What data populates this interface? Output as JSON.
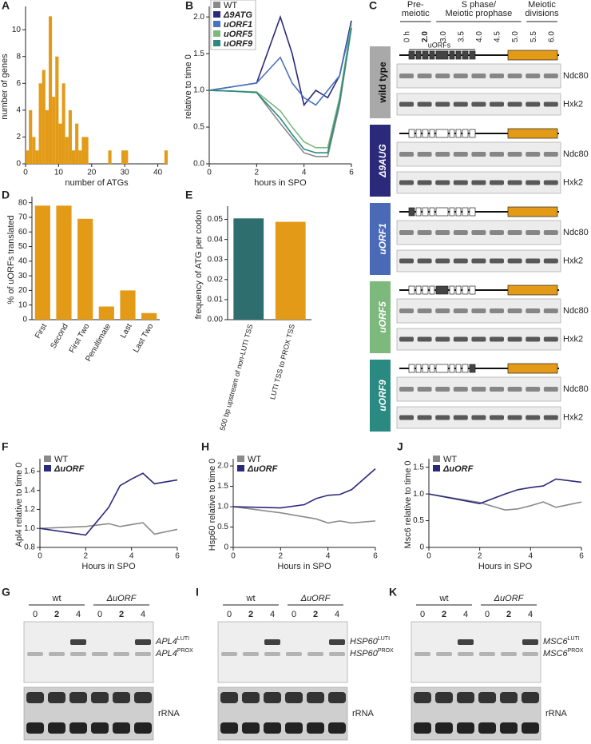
{
  "chart_data": [
    {
      "panel": "A",
      "type": "histogram",
      "xlabel": "number of ATGs",
      "ylabel": "number of genes",
      "color": "#e39b17",
      "bins": [
        0,
        1,
        2,
        3,
        4,
        5,
        6,
        7,
        8,
        9,
        10,
        11,
        12,
        13,
        14,
        15,
        16,
        17,
        18,
        19,
        20,
        21,
        22,
        23,
        24,
        25,
        26,
        27,
        28,
        29,
        30,
        31,
        32,
        33,
        34,
        35,
        36,
        37,
        38,
        39,
        40,
        41,
        42,
        43
      ],
      "values": [
        1,
        4,
        2,
        1,
        6,
        7,
        4,
        11,
        5,
        8,
        3,
        6,
        2,
        4,
        1,
        3,
        1,
        2,
        2,
        0,
        0,
        0,
        0,
        0,
        0,
        1,
        0,
        0,
        0,
        1,
        1,
        0,
        0,
        0,
        0,
        0,
        0,
        0,
        0,
        0,
        0,
        0,
        1
      ],
      "xlim": [
        0,
        43
      ],
      "xticks": [
        0,
        10,
        20,
        30,
        40
      ],
      "ylim": [
        0,
        11.5
      ],
      "yticks": [
        0,
        2,
        4,
        6,
        8,
        10
      ]
    },
    {
      "panel": "B",
      "type": "line",
      "xlabel": "hours in SPO",
      "ylabel": "relative to time 0",
      "x": [
        0,
        1,
        2,
        3,
        3.5,
        4,
        4.5,
        5,
        5.5,
        6
      ],
      "series": [
        {
          "name": "WT",
          "color": "#8a8a8a",
          "values": [
            1,
            0.99,
            0.97,
            0.55,
            0.35,
            0.15,
            0.1,
            0.1,
            0.8,
            1.85
          ]
        },
        {
          "name": "Δ9ATG",
          "color": "#2b2a7a",
          "values": [
            1,
            1.05,
            1.1,
            2.0,
            1.5,
            0.8,
            1.0,
            0.9,
            1.2,
            1.95
          ]
        },
        {
          "name": "uORF1",
          "color": "#4a72c0",
          "values": [
            1,
            1.05,
            1.1,
            1.45,
            1.1,
            0.9,
            0.8,
            1.0,
            1.2,
            1.9
          ]
        },
        {
          "name": "uORF5",
          "color": "#7db87d",
          "values": [
            1,
            0.99,
            0.98,
            0.72,
            0.5,
            0.3,
            0.22,
            0.22,
            0.9,
            1.9
          ]
        },
        {
          "name": "uORF9",
          "color": "#2a8a82",
          "values": [
            1,
            0.99,
            0.97,
            0.62,
            0.4,
            0.2,
            0.15,
            0.15,
            0.85,
            1.85
          ]
        }
      ],
      "xlim": [
        0,
        6
      ],
      "xticks": [
        0,
        2,
        4,
        6
      ],
      "ylim": [
        0,
        2.1
      ],
      "yticks": [
        {
          "value": 0,
          "label": "0.0"
        },
        0.5,
        {
          "value": 1,
          "label": "1.0"
        },
        1.5,
        {
          "value": 2,
          "label": "2.0"
        }
      ],
      "legend": "top-left"
    },
    {
      "panel": "D",
      "type": "bar",
      "ylabel": "% of uORFs translated",
      "color": "#e39b17",
      "categories": [
        "First",
        "Second",
        "First Two",
        "Penultimate",
        "Last",
        "Last Two"
      ],
      "values": [
        78,
        78,
        69,
        9,
        20,
        4.5
      ],
      "ylim": [
        0,
        82
      ],
      "yticks": [
        0,
        10,
        20,
        30,
        40,
        50,
        60,
        70,
        80
      ]
    },
    {
      "panel": "E",
      "type": "bar",
      "ylabel": "frequency of ATG per codon",
      "categories": [
        "500 bp upstream of non-LUTI TSS",
        "LUTI TSS to PROX TSS"
      ],
      "values": [
        0.0505,
        0.0488
      ],
      "colors": [
        "#2e6e6e",
        "#e39b17"
      ],
      "ylim": [
        0,
        0.055
      ],
      "yticks": [
        {
          "value": 0,
          "label": "0.00"
        },
        0.01,
        0.02,
        0.03,
        0.04,
        0.05
      ]
    },
    {
      "panel": "F",
      "type": "line",
      "xlabel": "Hours in SPO",
      "ylabel": "Apl4 relative to time 0",
      "x": [
        0,
        2,
        3,
        3.5,
        4,
        4.5,
        5,
        6
      ],
      "series": [
        {
          "name": "WT",
          "color": "#8a8a8a",
          "values": [
            1.0,
            1.02,
            1.05,
            1.02,
            1.04,
            1.06,
            0.94,
            0.99
          ]
        },
        {
          "name": "ΔuORF",
          "color": "#2b2a7a",
          "values": [
            1.0,
            0.93,
            1.22,
            1.45,
            1.52,
            1.58,
            1.47,
            1.51
          ]
        }
      ],
      "xlim": [
        0,
        6
      ],
      "xticks": [
        0,
        2,
        4,
        6
      ],
      "ylim": [
        0.8,
        1.7
      ],
      "yticks": [
        0.8,
        {
          "value": 1,
          "label": "1.0"
        },
        1.2,
        1.4,
        1.6
      ],
      "legend": "top-left"
    },
    {
      "panel": "H",
      "type": "line",
      "xlabel": "Hours in SPO",
      "ylabel": "Hsp60 relative to time 0",
      "x": [
        0,
        2,
        3,
        3.5,
        4,
        4.5,
        5,
        6
      ],
      "series": [
        {
          "name": "WT",
          "color": "#8a8a8a",
          "values": [
            1.0,
            0.85,
            0.75,
            0.7,
            0.6,
            0.65,
            0.6,
            0.65
          ]
        },
        {
          "name": "ΔuORF",
          "color": "#2b2a7a",
          "values": [
            1.0,
            0.97,
            1.05,
            1.2,
            1.28,
            1.3,
            1.42,
            1.93
          ]
        }
      ],
      "xlim": [
        0,
        6
      ],
      "xticks": [
        0,
        2,
        4,
        6
      ],
      "ylim": [
        0,
        2.1
      ],
      "yticks": [
        0,
        0.5,
        {
          "value": 1,
          "label": "1.0"
        },
        1.5,
        {
          "value": 2,
          "label": "2.0"
        }
      ],
      "legend": "top-left"
    },
    {
      "panel": "J",
      "type": "line",
      "xlabel": "Hours in SPO",
      "ylabel": "Msc6 relative to time 0",
      "x": [
        0,
        2,
        3,
        3.5,
        4,
        4.5,
        5,
        6
      ],
      "series": [
        {
          "name": "WT",
          "color": "#8a8a8a",
          "values": [
            1.0,
            0.84,
            0.7,
            0.72,
            0.78,
            0.85,
            0.75,
            0.85
          ]
        },
        {
          "name": "ΔuORF",
          "color": "#2b2a7a",
          "values": [
            1.0,
            0.82,
            1.0,
            1.08,
            1.12,
            1.15,
            1.28,
            1.22
          ]
        }
      ],
      "xlim": [
        0,
        6
      ],
      "xticks": [
        0,
        2,
        4,
        6
      ],
      "ylim": [
        0,
        1.6
      ],
      "yticks": [
        0,
        0.5,
        {
          "value": 1,
          "label": "1.0"
        },
        1.5
      ],
      "legend": "top-left"
    }
  ],
  "blots": {
    "C": {
      "panel": "C",
      "phases": [
        {
          "lines": [
            "Pre-",
            "meiotic"
          ]
        },
        {
          "lines": [
            "S phase/",
            "Meiotic prophase"
          ]
        },
        {
          "lines": [
            "Meiotic",
            "divisions"
          ]
        }
      ],
      "times": [
        "0 h",
        "2.0",
        "3.0",
        "3.5",
        "4.0",
        "4.5",
        "5.0",
        "5.5",
        "6.0"
      ],
      "uorfs": "uORFs",
      "strains": [
        {
          "name": "wild type",
          "color": "#a9a9a9"
        },
        {
          "name": "Δ9AUG",
          "color": "#2b2a7a"
        },
        {
          "name": "uORF1",
          "color": "#4a6ab8"
        },
        {
          "name": "uORF5",
          "color": "#7db87d"
        },
        {
          "name": "uORF9",
          "color": "#2a8a82"
        }
      ],
      "proteins": [
        "Ndc80",
        "Hxk2"
      ]
    },
    "northern": [
      {
        "panel": "G",
        "groups": [
          "wt",
          "ΔuORF"
        ],
        "lanes": [
          "0",
          "2",
          "4",
          "0",
          "2",
          "4"
        ],
        "bands": [
          {
            "gene": "APL4",
            "sup": "LUTI"
          },
          {
            "gene": "APL4",
            "sup": "PROX"
          }
        ],
        "loading": "rRNA"
      },
      {
        "panel": "I",
        "groups": [
          "wt",
          "ΔuORF"
        ],
        "lanes": [
          "0",
          "2",
          "4",
          "0",
          "2",
          "4"
        ],
        "bands": [
          {
            "gene": "HSP60",
            "sup": "LUTI"
          },
          {
            "gene": "HSP60",
            "sup": "PROX"
          }
        ],
        "loading": "rRNA"
      },
      {
        "panel": "K",
        "groups": [
          "wt",
          "ΔuORF"
        ],
        "lanes": [
          "0",
          "2",
          "4",
          "0",
          "2",
          "4"
        ],
        "bands": [
          {
            "gene": "MSC6",
            "sup": "LUTI"
          },
          {
            "gene": "MSC6",
            "sup": "PROX"
          }
        ],
        "loading": "rRNA"
      }
    ]
  }
}
